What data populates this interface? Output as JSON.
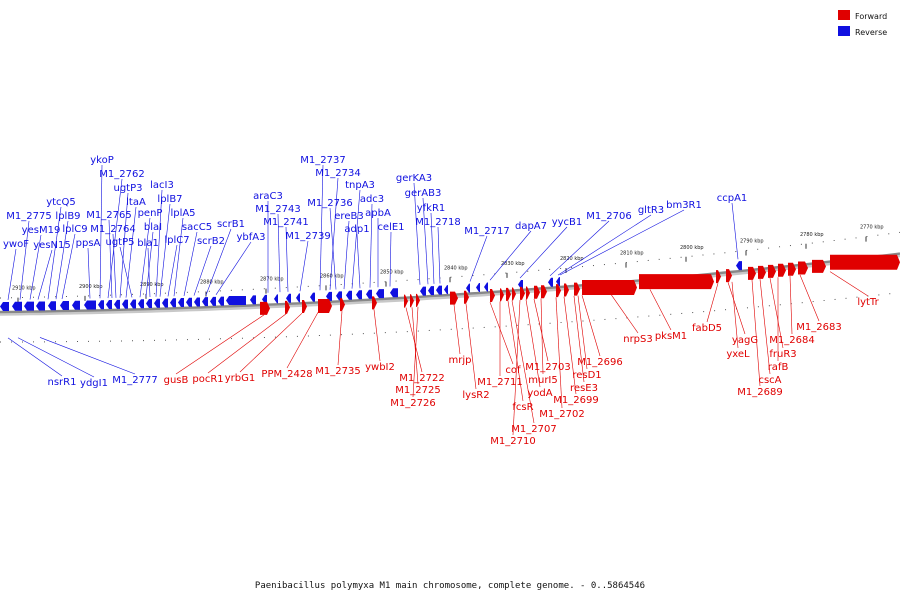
{
  "caption": "Paenibacillus polymyxa M1 main chromosome, complete genome. - 0..5864546",
  "legend": [
    {
      "label": "Forward",
      "color": "#e00000"
    },
    {
      "label": "Reverse",
      "color": "#1010e0"
    }
  ],
  "colors": {
    "forward": "#e00000",
    "reverse": "#1010e0",
    "backbone": "#888888"
  },
  "tick_labels": [
    "2910 kbp",
    "2900 kbp",
    "2890 kbp",
    "2880 kbp",
    "2870 kbp",
    "2860 kbp",
    "2850 kbp",
    "2840 kbp",
    "2830 kbp",
    "2820 kbp",
    "2810 kbp",
    "2800 kbp",
    "2790 kbp",
    "2780 kbp",
    "2770 kbp"
  ],
  "reverse_labels": [
    "ywoF",
    "M1_2775",
    "yesM19",
    "yesN15",
    "ytcQ5",
    "lplB9",
    "lplC9",
    "ppsA",
    "ykoP",
    "M1_2762",
    "M1_2765",
    "M1_2764",
    "ugtP3",
    "ltaA",
    "ugtP5",
    "penP",
    "blaI",
    "bla1",
    "lacI3",
    "lplB7",
    "lplC7",
    "lplA5",
    "sacC5",
    "scrB2",
    "scrB1",
    "ybfA3",
    "araC3",
    "M1_2743",
    "M1_2741",
    "M1_2739",
    "M1_2737",
    "M1_2734",
    "M1_2736",
    "ereB3",
    "tnpA3",
    "adp1",
    "adc3",
    "apbA",
    "celE1",
    "gerKA3",
    "gerAB3",
    "yfkR1",
    "M1_2718",
    "M1_2717",
    "dapA7",
    "yycB1",
    "M1_2706",
    "gltR3",
    "bm3R1",
    "ccpA1",
    "nsrR1",
    "ydgI1",
    "M1_2777"
  ],
  "forward_labels": [
    "gusB",
    "pocR1",
    "yrbG1",
    "PPM_2428",
    "M1_2735",
    "ywbI2",
    "M1_2722",
    "M1_2725",
    "M1_2726",
    "mrjp",
    "lysR2",
    "cof",
    "M1_2711",
    "fcsR",
    "M1_2707",
    "M1_2710",
    "yodA",
    "M1_2703",
    "murI5",
    "M1_2702",
    "M1_2699",
    "resE3",
    "resD1",
    "M1_2696",
    "nrpS3",
    "pksM1",
    "fabD5",
    "yagG",
    "yxeL",
    "M1_2689",
    "cscA",
    "fruR3",
    "rafB",
    "M1_2684",
    "M1_2683",
    "lytTr"
  ]
}
